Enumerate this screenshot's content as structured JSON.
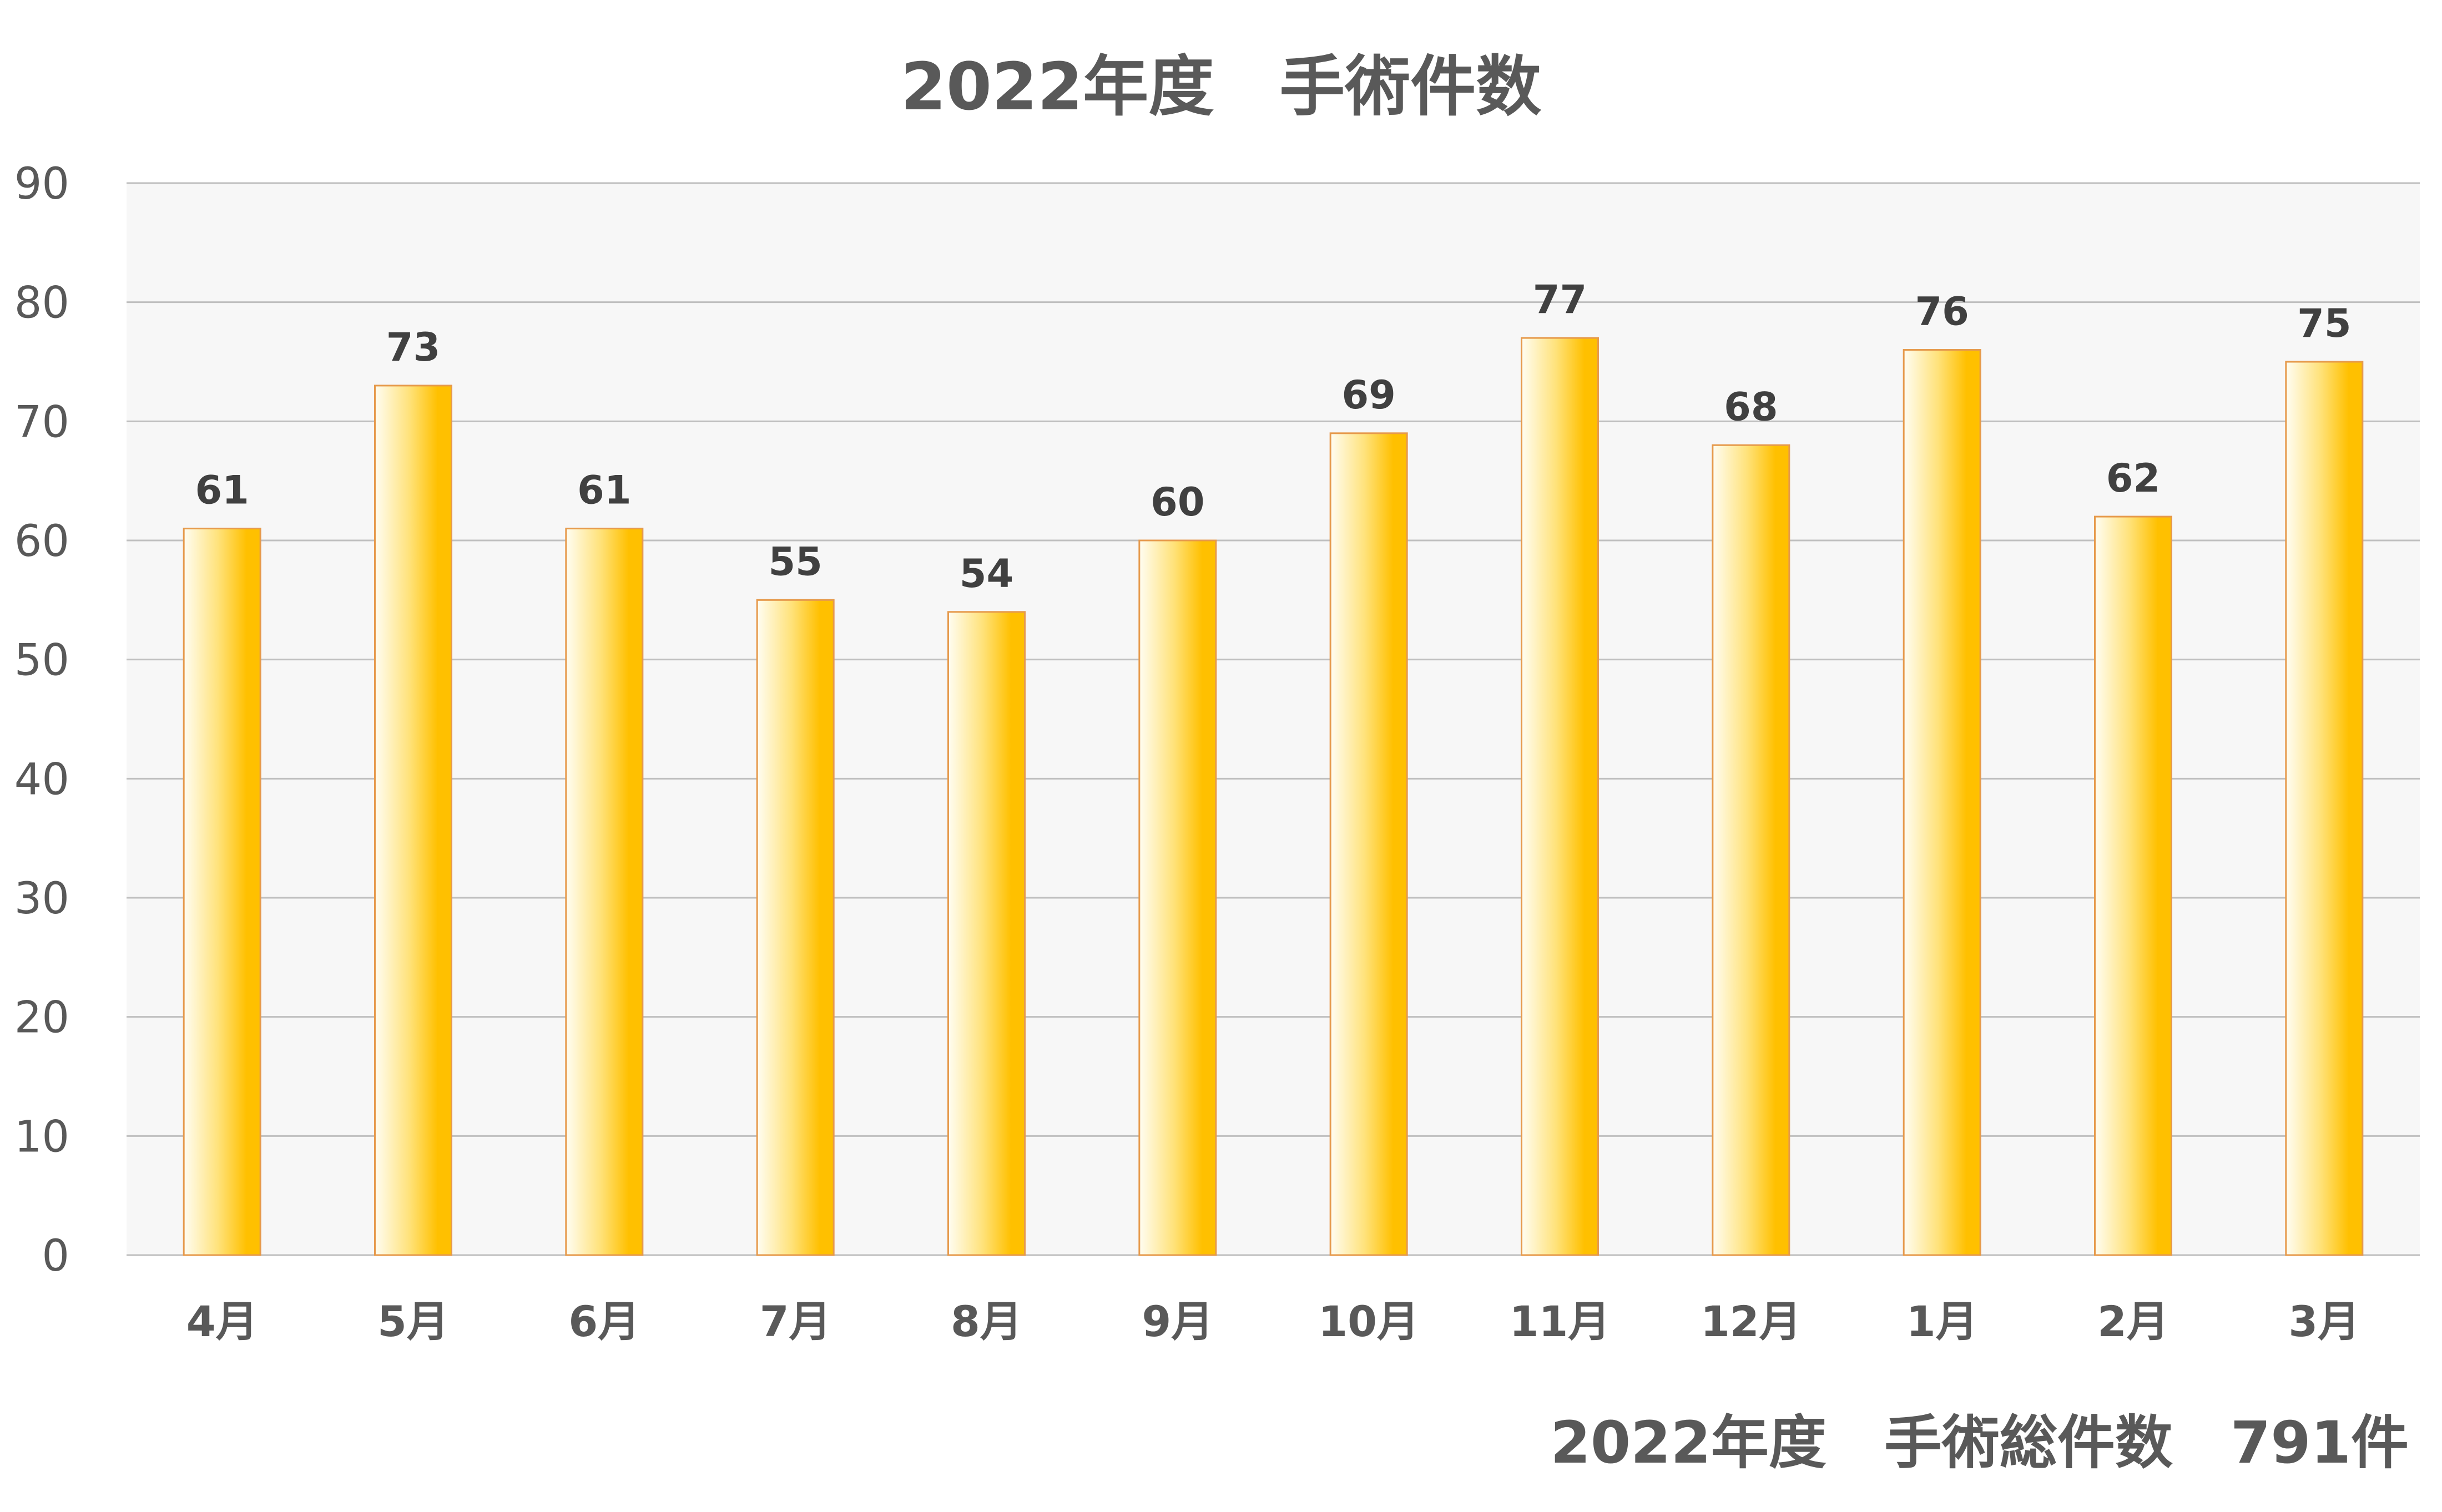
{
  "chart_data": {
    "type": "bar",
    "title": "2022年度　手術件数",
    "categories": [
      "4月",
      "5月",
      "6月",
      "7月",
      "8月",
      "9月",
      "10月",
      "11月",
      "12月",
      "1月",
      "2月",
      "3月"
    ],
    "series": [
      {
        "values": [
          61,
          73,
          61,
          55,
          54,
          60,
          69,
          77,
          68,
          76,
          62,
          75
        ]
      }
    ],
    "ylim": [
      0,
      90
    ],
    "yticks": [
      0,
      10,
      20,
      30,
      40,
      50,
      60,
      70,
      80,
      90
    ],
    "grid": true,
    "data_labels": true,
    "annotation": "2022年度　手術総件数　791件"
  },
  "colors": {
    "bar_light": "#fffdf2",
    "bar_mid": "#ffe27a",
    "bar_dark": "#ffc000",
    "bar_edge": "#e69a4c",
    "plot_background": "#f7f7f7",
    "gridline": "#bfbfbf",
    "text": "#595959",
    "label_text": "#404040"
  }
}
